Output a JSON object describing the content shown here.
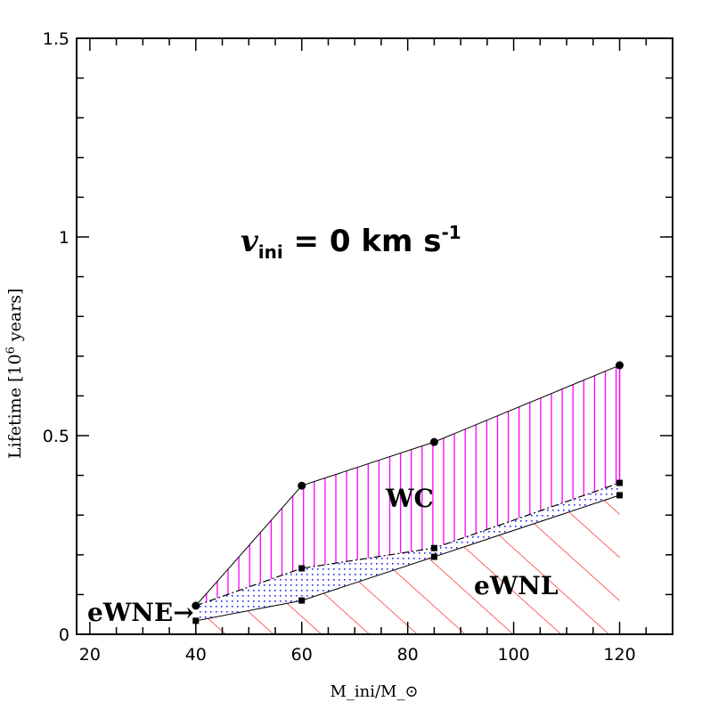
{
  "chart_data": {
    "type": "area",
    "title": "v_ini = 0 km s-1",
    "title_parts": {
      "symbol": "v",
      "subscript": "ini",
      "rest": " = 0 km s",
      "superscript": "-1"
    },
    "xlabel": "M_ini/M_⊙",
    "xlabel_parts": {
      "m1": "M",
      "sub1": "ini",
      "slash": "/M",
      "sub2": "⊙"
    },
    "ylabel": "Lifetime [10^6 years]",
    "ylabel_parts": {
      "pre": "Lifetime [10",
      "sup": "6",
      "post": " years]"
    },
    "xlim": [
      17.5,
      130
    ],
    "ylim": [
      0,
      1.5
    ],
    "x_ticks": [
      20,
      40,
      60,
      80,
      100,
      120
    ],
    "x_tick_labels": [
      "20",
      "40",
      "60",
      "80",
      "100",
      "120"
    ],
    "y_ticks": [
      0,
      0.5,
      1,
      1.5
    ],
    "y_tick_labels": [
      "0",
      "0.5",
      "1",
      "1.5"
    ],
    "grid": false,
    "x": [
      40,
      60,
      85,
      120
    ],
    "series": [
      {
        "name": "eWNL",
        "values": [
          0.034,
          0.085,
          0.195,
          0.35
        ],
        "color": "#ff0000",
        "fill": "diagonal-hatch"
      },
      {
        "name": "eWNE",
        "values": [
          0.072,
          0.166,
          0.217,
          0.381
        ],
        "color": "#0000ff",
        "fill": "dots"
      },
      {
        "name": "WC",
        "values": [
          0.072,
          0.374,
          0.484,
          0.677
        ],
        "color": "#ff00ff",
        "fill": "vertical-hatch"
      }
    ],
    "annotations": [
      {
        "text": "WC",
        "x": 64,
        "y": 0.34
      },
      {
        "text": "eWNL",
        "x": 95,
        "y": 0.12
      },
      {
        "text": "eWNE→",
        "x": 27,
        "y": 0.055
      }
    ]
  }
}
